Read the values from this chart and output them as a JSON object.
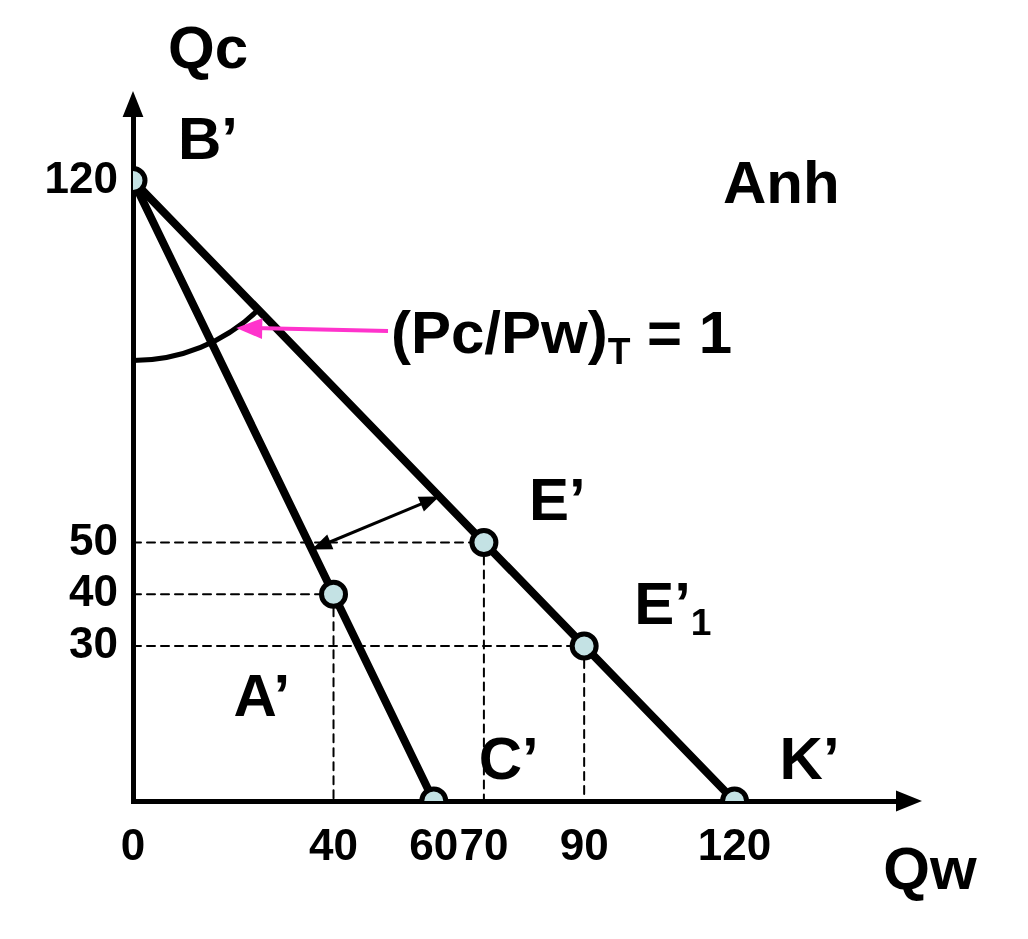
{
  "chart_data": {
    "type": "line",
    "xlabel": "Qw",
    "ylabel": "Qc",
    "xlim": [
      0,
      155
    ],
    "ylim": [
      0,
      135
    ],
    "xticks": [
      {
        "value": 0,
        "label": "0"
      },
      40,
      60,
      70,
      90,
      120
    ],
    "yticks": [
      30,
      40,
      50,
      120
    ],
    "grid": false,
    "legend": false,
    "series": [
      {
        "color": "#000000",
        "marker": "none",
        "x": [
          0,
          60
        ],
        "values": [
          120,
          0
        ]
      },
      {
        "color": "#000000",
        "marker": "none",
        "x": [
          0,
          120
        ],
        "values": [
          120,
          0
        ]
      },
      {
        "color": "#000000",
        "marker": "none",
        "line_style": "dashed",
        "x": [
          0,
          40
        ],
        "values": [
          40,
          40
        ]
      },
      {
        "color": "#000000",
        "marker": "none",
        "line_style": "dashed",
        "x": [
          40,
          40
        ],
        "values": [
          40,
          0
        ]
      },
      {
        "color": "#000000",
        "marker": "none",
        "line_style": "dashed",
        "x": [
          0,
          70
        ],
        "values": [
          50,
          50
        ]
      },
      {
        "color": "#000000",
        "marker": "none",
        "line_style": "dashed",
        "x": [
          70,
          70
        ],
        "values": [
          50,
          0
        ]
      },
      {
        "color": "#000000",
        "marker": "none",
        "line_style": "dashed",
        "x": [
          0,
          90
        ],
        "values": [
          30,
          30
        ]
      },
      {
        "color": "#000000",
        "marker": "none",
        "line_style": "dashed",
        "x": [
          90,
          90
        ],
        "values": [
          30,
          0
        ]
      },
      {
        "type": "scatter",
        "color": "#c4e2e4",
        "marker": "circle",
        "x": [
          0,
          40,
          60,
          70,
          90,
          120
        ],
        "values": [
          120,
          40,
          0,
          50,
          30,
          0
        ]
      }
    ],
    "annotations": [
      {
        "text": "B’",
        "x": 0,
        "y": 120
      },
      {
        "text": "A’",
        "x": 40,
        "y": 40
      },
      {
        "text": "C’",
        "x": 60,
        "y": 0
      },
      {
        "text": "E’",
        "x": 70,
        "y": 50
      },
      {
        "text": "E’$_{1}$",
        "x": 90,
        "y": 30
      },
      {
        "text": "K’",
        "x": 120,
        "y": 0
      },
      "Anh",
      "(Pc/Pw)$_{T}$ = 1"
    ]
  }
}
